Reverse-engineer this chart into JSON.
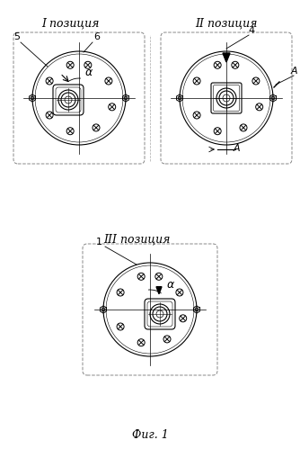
{
  "title": "Фиг. 1",
  "pos1_label": "I позиция",
  "pos2_label": "II позиция",
  "pos3_label": "III позиция",
  "bg_color": "#ffffff",
  "line_color": "#000000",
  "label_color": "#000000",
  "font_size": 8,
  "italic_font": "italic"
}
